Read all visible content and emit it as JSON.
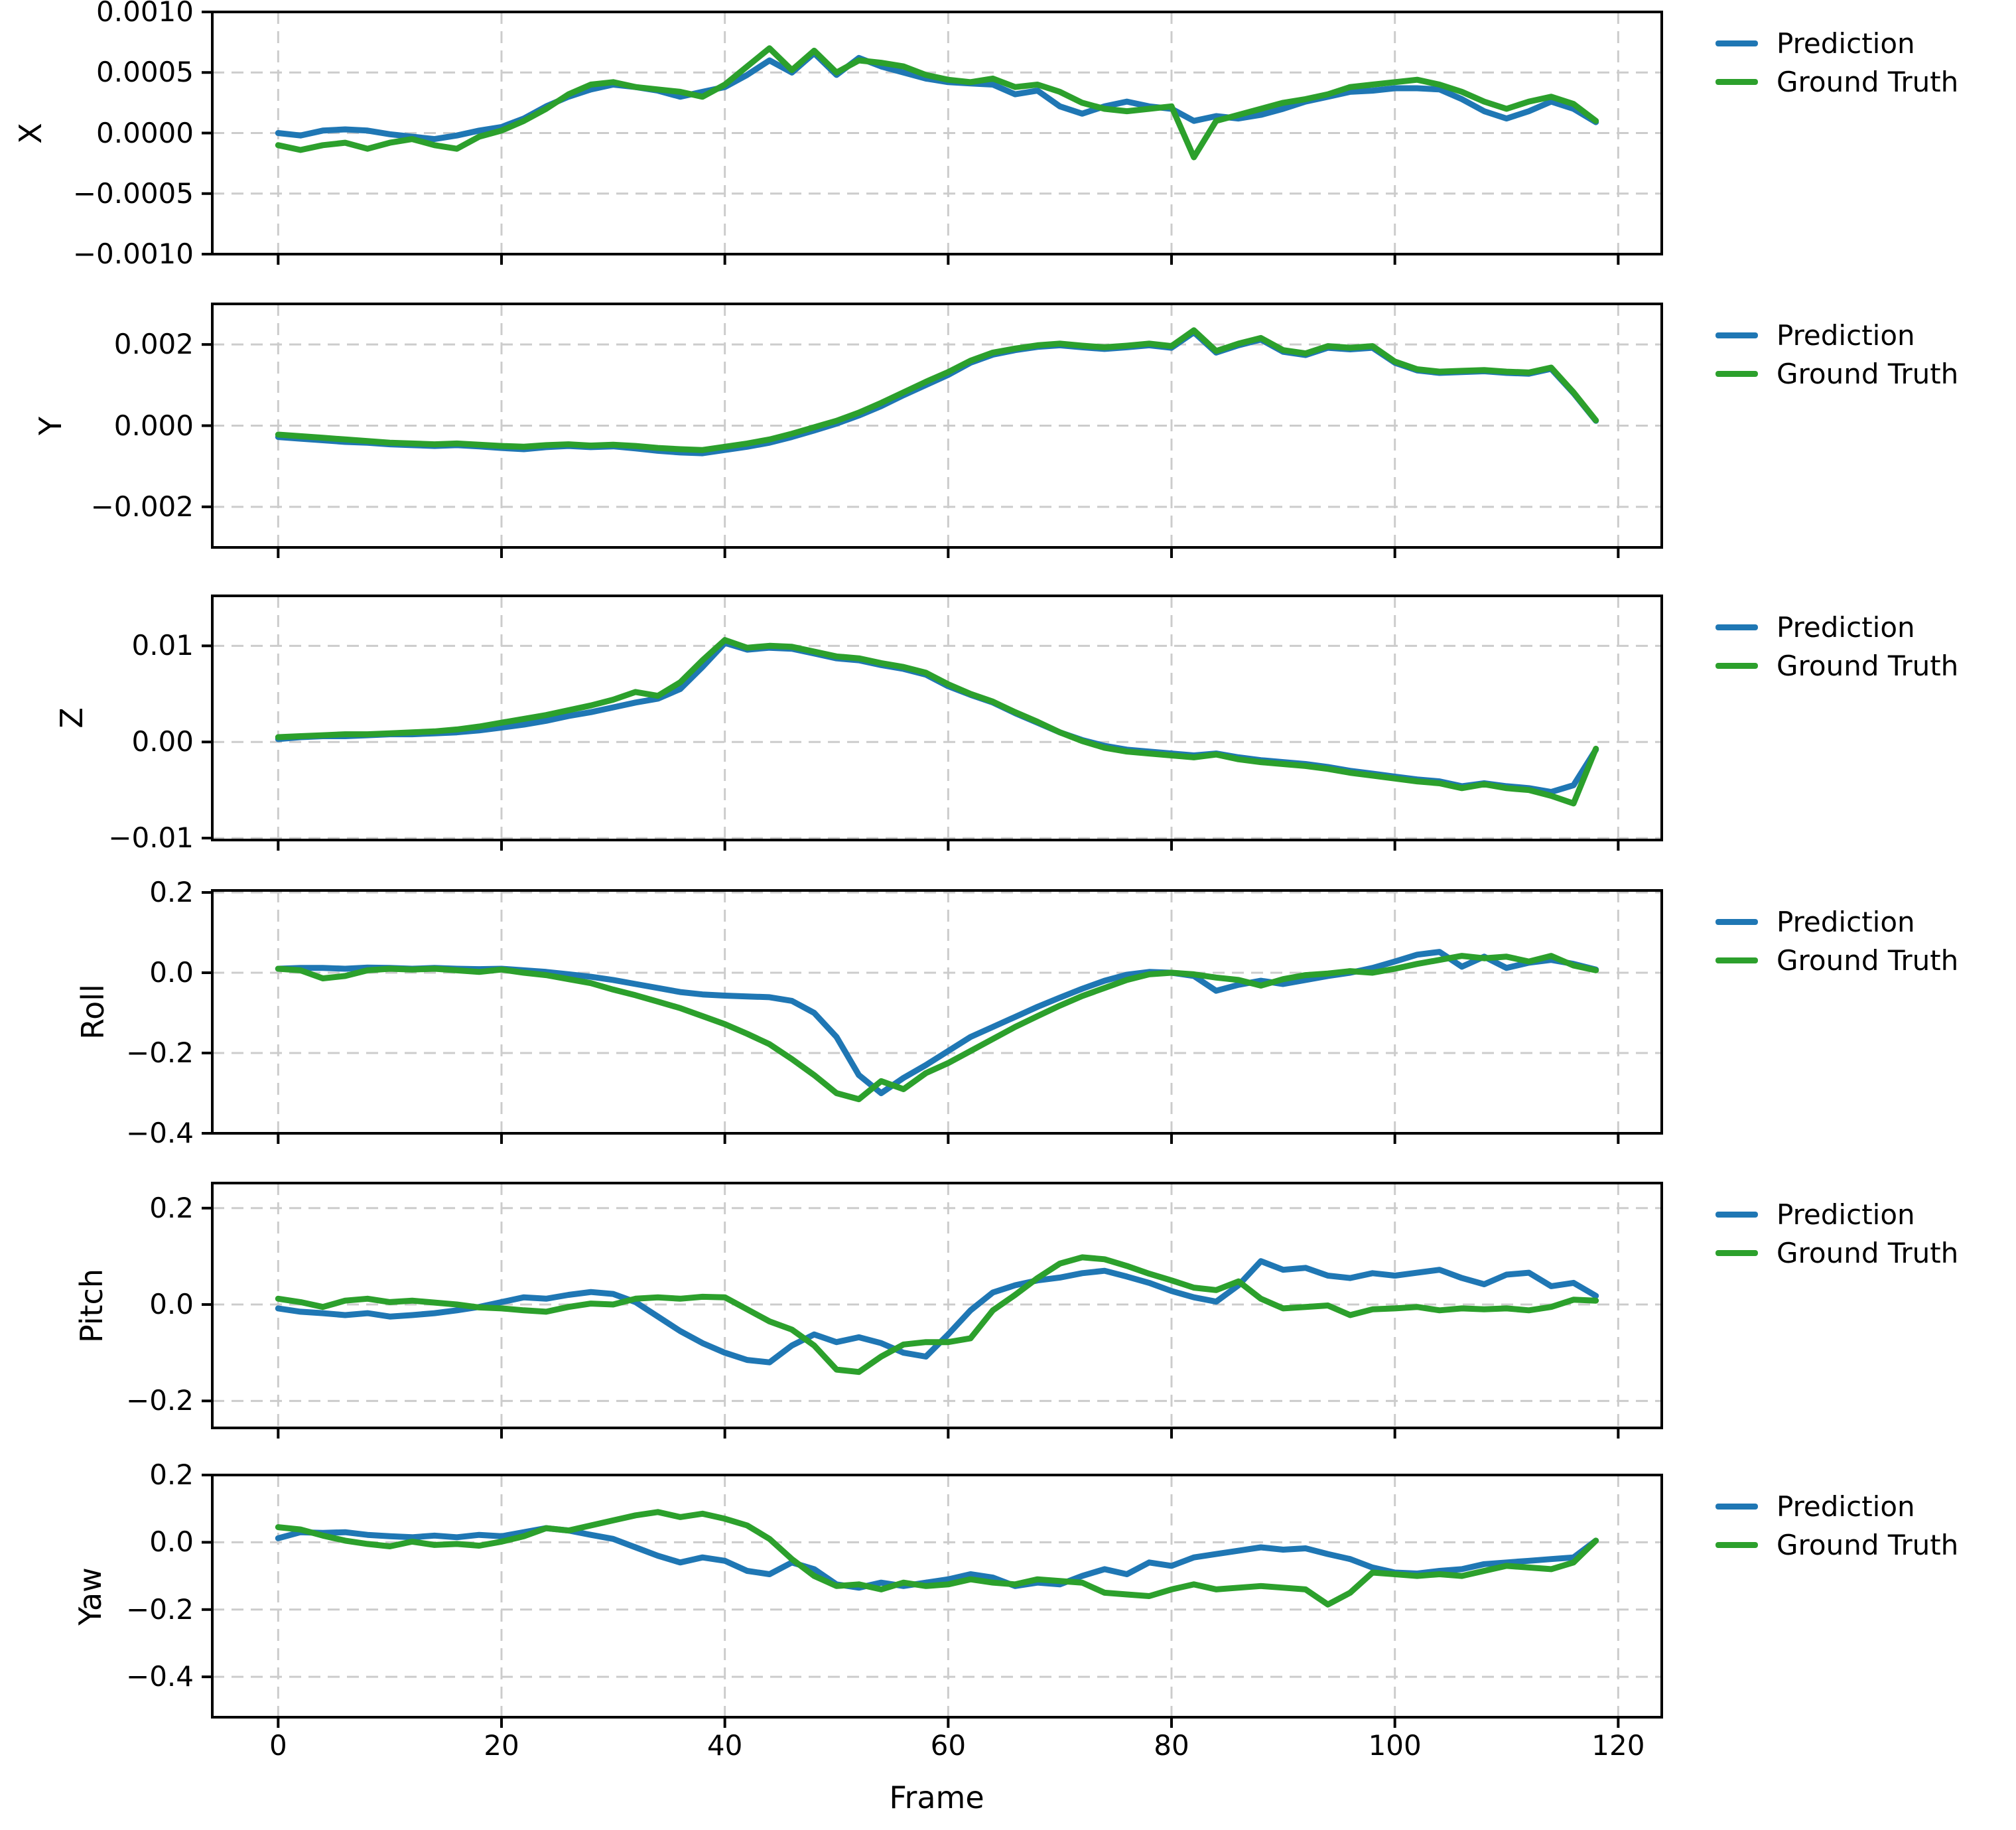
{
  "chart_data": {
    "type": "line",
    "x_label": "Frame",
    "x_ticks": [
      0,
      20,
      40,
      60,
      80,
      100,
      120
    ],
    "x_range": [
      -5.9,
      123.9
    ],
    "grid": true,
    "legend": [
      "Prediction",
      "Ground Truth"
    ],
    "legend_position": "right-of-each-panel",
    "colors": {
      "prediction": "#1f77b4",
      "ground_truth": "#2ca02c",
      "grid": "#cccccc",
      "axis": "#000000"
    },
    "frames": [
      0,
      2,
      4,
      6,
      8,
      10,
      12,
      14,
      16,
      18,
      20,
      22,
      24,
      26,
      28,
      30,
      32,
      34,
      36,
      38,
      40,
      42,
      44,
      46,
      48,
      50,
      52,
      54,
      56,
      58,
      60,
      62,
      64,
      66,
      68,
      70,
      72,
      74,
      76,
      78,
      80,
      82,
      84,
      86,
      88,
      90,
      92,
      94,
      96,
      98,
      100,
      102,
      104,
      106,
      108,
      110,
      112,
      114,
      116,
      118
    ],
    "panels": [
      {
        "ylabel": "X",
        "ylim": [
          -0.001,
          0.001
        ],
        "yticks": [
          0.001,
          0.0005,
          0.0,
          -0.0005,
          -0.001
        ],
        "ytick_labels": [
          "0.0010",
          "0.0005",
          "0.0000",
          "−0.0005",
          "−0.0010"
        ],
        "prediction": [
          0.0,
          -2e-05,
          2e-05,
          3e-05,
          2e-05,
          -1e-05,
          -3e-05,
          -5e-05,
          -2e-05,
          2e-05,
          5e-05,
          0.00012,
          0.00022,
          0.0003,
          0.00036,
          0.0004,
          0.00038,
          0.00035,
          0.0003,
          0.00034,
          0.00038,
          0.00048,
          0.0006,
          0.0005,
          0.00066,
          0.00048,
          0.00062,
          0.00055,
          0.0005,
          0.00045,
          0.00042,
          0.00041,
          0.0004,
          0.00032,
          0.00035,
          0.00022,
          0.00016,
          0.00022,
          0.00026,
          0.00022,
          0.0002,
          0.0001,
          0.00014,
          0.00012,
          0.00015,
          0.0002,
          0.00026,
          0.0003,
          0.00034,
          0.00035,
          0.00037,
          0.00037,
          0.00036,
          0.00028,
          0.00018,
          0.00012,
          0.00018,
          0.00026,
          0.0002,
          9e-05
        ],
        "ground_truth": [
          -0.0001,
          -0.00014,
          -0.0001,
          -8e-05,
          -0.00013,
          -8e-05,
          -5e-05,
          -0.0001,
          -0.00013,
          -3e-05,
          2e-05,
          0.0001,
          0.0002,
          0.00032,
          0.0004,
          0.00042,
          0.00038,
          0.00036,
          0.00034,
          0.0003,
          0.0004,
          0.00055,
          0.0007,
          0.00052,
          0.00068,
          0.0005,
          0.0006,
          0.00058,
          0.00055,
          0.00048,
          0.00044,
          0.00042,
          0.00045,
          0.00038,
          0.0004,
          0.00034,
          0.00025,
          0.0002,
          0.00018,
          0.0002,
          0.00022,
          -0.0002,
          0.0001,
          0.00015,
          0.0002,
          0.00025,
          0.00028,
          0.00032,
          0.00038,
          0.0004,
          0.00042,
          0.00044,
          0.0004,
          0.00034,
          0.00026,
          0.0002,
          0.00026,
          0.0003,
          0.00024,
          0.0001
        ]
      },
      {
        "ylabel": "Y",
        "ylim": [
          -0.003,
          0.003
        ],
        "yticks": [
          0.002,
          0.0,
          -0.002
        ],
        "ytick_labels": [
          "0.002",
          "0.000",
          "−0.002"
        ],
        "prediction": [
          -0.00028,
          -0.00032,
          -0.00036,
          -0.0004,
          -0.00042,
          -0.00046,
          -0.00048,
          -0.0005,
          -0.00048,
          -0.00051,
          -0.00055,
          -0.00058,
          -0.00053,
          -0.0005,
          -0.00053,
          -0.00051,
          -0.00056,
          -0.00062,
          -0.00066,
          -0.00068,
          -0.0006,
          -0.00052,
          -0.00042,
          -0.00028,
          -0.00012,
          5e-05,
          0.00025,
          0.00048,
          0.00075,
          0.001,
          0.00125,
          0.00155,
          0.00175,
          0.00186,
          0.00194,
          0.00198,
          0.00193,
          0.00189,
          0.00193,
          0.00198,
          0.00192,
          0.0023,
          0.0018,
          0.00198,
          0.00212,
          0.00182,
          0.00174,
          0.00192,
          0.00188,
          0.00192,
          0.00155,
          0.00136,
          0.0013,
          0.00132,
          0.00134,
          0.0013,
          0.00128,
          0.0014,
          0.0008,
          0.00012
        ],
        "ground_truth": [
          -0.00022,
          -0.00026,
          -0.0003,
          -0.00034,
          -0.00038,
          -0.00042,
          -0.00044,
          -0.00046,
          -0.00044,
          -0.00047,
          -0.0005,
          -0.00052,
          -0.00048,
          -0.00046,
          -0.00049,
          -0.00047,
          -0.0005,
          -0.00055,
          -0.00058,
          -0.0006,
          -0.00052,
          -0.00044,
          -0.00034,
          -0.0002,
          -4e-05,
          0.00012,
          0.00032,
          0.00056,
          0.00082,
          0.00108,
          0.00132,
          0.0016,
          0.0018,
          0.0019,
          0.00198,
          0.00202,
          0.00197,
          0.00193,
          0.00197,
          0.00202,
          0.00196,
          0.00235,
          0.00184,
          0.00202,
          0.00216,
          0.00186,
          0.00178,
          0.00196,
          0.00192,
          0.00196,
          0.00158,
          0.00139,
          0.00133,
          0.00135,
          0.00137,
          0.00133,
          0.00131,
          0.00143,
          0.00082,
          0.00013
        ]
      },
      {
        "ylabel": "Z",
        "ylim": [
          -0.0102,
          0.0152
        ],
        "yticks": [
          0.01,
          0.0,
          -0.01
        ],
        "ytick_labels": [
          "0.01",
          "0.00",
          "−0.01"
        ],
        "prediction": [
          0.0003,
          0.0005,
          0.0006,
          0.0006,
          0.0007,
          0.0008,
          0.0008,
          0.0009,
          0.001,
          0.0012,
          0.0015,
          0.0018,
          0.0022,
          0.0027,
          0.0031,
          0.0036,
          0.0041,
          0.0045,
          0.0055,
          0.0078,
          0.0103,
          0.0096,
          0.0098,
          0.0097,
          0.0092,
          0.0087,
          0.0085,
          0.008,
          0.0076,
          0.007,
          0.0058,
          0.0049,
          0.0041,
          0.003,
          0.002,
          0.001,
          0.0002,
          -0.0004,
          -0.0008,
          -0.001,
          -0.0012,
          -0.0014,
          -0.0012,
          -0.0016,
          -0.0019,
          -0.0021,
          -0.0023,
          -0.0026,
          -0.003,
          -0.0033,
          -0.0036,
          -0.0039,
          -0.0041,
          -0.0046,
          -0.0043,
          -0.0046,
          -0.0048,
          -0.0052,
          -0.0045,
          -0.0008
        ],
        "ground_truth": [
          0.0005,
          0.0006,
          0.0007,
          0.0008,
          0.0008,
          0.0009,
          0.001,
          0.0011,
          0.0013,
          0.0016,
          0.002,
          0.0024,
          0.0028,
          0.0033,
          0.0038,
          0.0044,
          0.0052,
          0.0048,
          0.0062,
          0.0085,
          0.0106,
          0.0098,
          0.01,
          0.0099,
          0.0094,
          0.0089,
          0.0087,
          0.0082,
          0.0078,
          0.0072,
          0.006,
          0.005,
          0.0042,
          0.0031,
          0.0021,
          0.001,
          0.0001,
          -0.0006,
          -0.001,
          -0.0012,
          -0.0014,
          -0.0016,
          -0.0013,
          -0.0018,
          -0.0021,
          -0.0023,
          -0.0025,
          -0.0028,
          -0.0032,
          -0.0035,
          -0.0038,
          -0.0041,
          -0.0043,
          -0.0048,
          -0.0044,
          -0.0048,
          -0.005,
          -0.0056,
          -0.0064,
          -0.0007
        ]
      },
      {
        "ylabel": "Roll",
        "ylim": [
          -0.4,
          0.205
        ],
        "yticks": [
          0.2,
          0.0,
          -0.2,
          -0.4
        ],
        "ytick_labels": [
          "0.2",
          "0.0",
          "−0.2",
          "−0.4"
        ],
        "prediction": [
          0.01,
          0.012,
          0.012,
          0.01,
          0.013,
          0.012,
          0.01,
          0.012,
          0.01,
          0.009,
          0.01,
          0.006,
          0.002,
          -0.004,
          -0.01,
          -0.018,
          -0.028,
          -0.038,
          -0.048,
          -0.054,
          -0.057,
          -0.059,
          -0.061,
          -0.07,
          -0.1,
          -0.16,
          -0.255,
          -0.3,
          -0.262,
          -0.23,
          -0.195,
          -0.16,
          -0.135,
          -0.11,
          -0.085,
          -0.062,
          -0.04,
          -0.02,
          -0.005,
          0.002,
          0.0,
          -0.008,
          -0.045,
          -0.03,
          -0.02,
          -0.028,
          -0.018,
          -0.008,
          0.0,
          0.012,
          0.028,
          0.045,
          0.052,
          0.015,
          0.04,
          0.012,
          0.025,
          0.032,
          0.022,
          0.008
        ],
        "ground_truth": [
          0.01,
          0.006,
          -0.014,
          -0.008,
          0.006,
          0.01,
          0.008,
          0.01,
          0.006,
          0.002,
          0.008,
          0.0,
          -0.006,
          -0.016,
          -0.026,
          -0.042,
          -0.056,
          -0.072,
          -0.088,
          -0.108,
          -0.128,
          -0.152,
          -0.178,
          -0.215,
          -0.255,
          -0.3,
          -0.315,
          -0.27,
          -0.29,
          -0.25,
          -0.225,
          -0.195,
          -0.165,
          -0.135,
          -0.108,
          -0.082,
          -0.058,
          -0.038,
          -0.018,
          -0.004,
          0.0,
          -0.004,
          -0.012,
          -0.018,
          -0.032,
          -0.016,
          -0.006,
          -0.002,
          0.004,
          0.0,
          0.01,
          0.022,
          0.032,
          0.042,
          0.036,
          0.04,
          0.028,
          0.042,
          0.018,
          0.006
        ]
      },
      {
        "ylabel": "Pitch",
        "ylim": [
          -0.256,
          0.252
        ],
        "yticks": [
          0.2,
          0.0,
          -0.2
        ],
        "ytick_labels": [
          "0.2",
          "0.0",
          "−0.2"
        ],
        "prediction": [
          -0.008,
          -0.015,
          -0.018,
          -0.022,
          -0.018,
          -0.025,
          -0.022,
          -0.018,
          -0.012,
          -0.005,
          0.005,
          0.015,
          0.012,
          0.02,
          0.026,
          0.022,
          0.005,
          -0.025,
          -0.055,
          -0.08,
          -0.1,
          -0.115,
          -0.12,
          -0.085,
          -0.062,
          -0.078,
          -0.068,
          -0.08,
          -0.1,
          -0.108,
          -0.062,
          -0.012,
          0.025,
          0.04,
          0.05,
          0.056,
          0.065,
          0.07,
          0.058,
          0.045,
          0.028,
          0.015,
          0.006,
          0.04,
          0.09,
          0.072,
          0.076,
          0.06,
          0.055,
          0.065,
          0.06,
          0.066,
          0.072,
          0.055,
          0.042,
          0.062,
          0.066,
          0.038,
          0.045,
          0.018
        ],
        "ground_truth": [
          0.012,
          0.005,
          -0.005,
          0.008,
          0.012,
          0.005,
          0.008,
          0.004,
          0.0,
          -0.006,
          -0.008,
          -0.012,
          -0.015,
          -0.005,
          0.002,
          0.0,
          0.012,
          0.015,
          0.012,
          0.016,
          0.015,
          -0.01,
          -0.035,
          -0.052,
          -0.085,
          -0.135,
          -0.14,
          -0.108,
          -0.083,
          -0.078,
          -0.078,
          -0.07,
          -0.012,
          0.02,
          0.055,
          0.085,
          0.098,
          0.094,
          0.08,
          0.064,
          0.05,
          0.035,
          0.03,
          0.048,
          0.012,
          -0.008,
          -0.005,
          -0.002,
          -0.022,
          -0.01,
          -0.008,
          -0.005,
          -0.012,
          -0.008,
          -0.01,
          -0.008,
          -0.012,
          -0.005,
          0.01,
          0.008
        ]
      },
      {
        "ylabel": "Yaw",
        "ylim": [
          -0.52,
          0.2
        ],
        "yticks": [
          0.2,
          0.0,
          -0.2,
          -0.4
        ],
        "ytick_labels": [
          "0.2",
          "0.0",
          "−0.2",
          "−0.4"
        ],
        "prediction": [
          0.012,
          0.03,
          0.028,
          0.03,
          0.022,
          0.018,
          0.015,
          0.02,
          0.015,
          0.022,
          0.018,
          0.03,
          0.042,
          0.035,
          0.022,
          0.01,
          -0.015,
          -0.04,
          -0.06,
          -0.045,
          -0.055,
          -0.085,
          -0.095,
          -0.06,
          -0.08,
          -0.125,
          -0.135,
          -0.12,
          -0.13,
          -0.12,
          -0.11,
          -0.095,
          -0.105,
          -0.13,
          -0.12,
          -0.125,
          -0.1,
          -0.08,
          -0.095,
          -0.06,
          -0.07,
          -0.045,
          -0.035,
          -0.025,
          -0.015,
          -0.022,
          -0.018,
          -0.035,
          -0.05,
          -0.075,
          -0.09,
          -0.093,
          -0.085,
          -0.08,
          -0.065,
          -0.06,
          -0.055,
          -0.05,
          -0.045,
          0.005
        ],
        "ground_truth": [
          0.045,
          0.038,
          0.02,
          0.005,
          -0.005,
          -0.012,
          0.002,
          -0.008,
          -0.005,
          -0.01,
          0.002,
          0.018,
          0.042,
          0.035,
          0.05,
          0.065,
          0.08,
          0.09,
          0.075,
          0.085,
          0.07,
          0.05,
          0.01,
          -0.05,
          -0.1,
          -0.13,
          -0.125,
          -0.14,
          -0.12,
          -0.13,
          -0.125,
          -0.11,
          -0.12,
          -0.125,
          -0.11,
          -0.115,
          -0.12,
          -0.15,
          -0.155,
          -0.16,
          -0.14,
          -0.125,
          -0.14,
          -0.135,
          -0.13,
          -0.135,
          -0.14,
          -0.185,
          -0.15,
          -0.09,
          -0.095,
          -0.1,
          -0.095,
          -0.1,
          -0.085,
          -0.07,
          -0.075,
          -0.08,
          -0.06,
          0.005
        ]
      }
    ]
  }
}
